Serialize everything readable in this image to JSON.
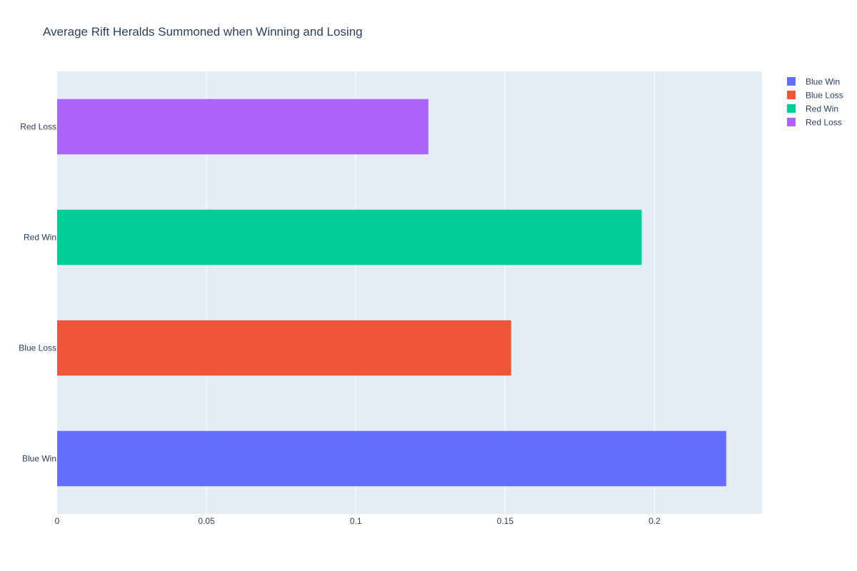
{
  "chart_data": {
    "type": "bar",
    "orientation": "horizontal",
    "title": "Average Rift Heralds Summoned when Winning and Losing",
    "xlabel": "",
    "ylabel": "",
    "categories": [
      "Blue Win",
      "Blue Loss",
      "Red Win",
      "Red Loss"
    ],
    "values": [
      0.224,
      0.152,
      0.1957,
      0.1243
    ],
    "xlim": [
      0,
      0.236
    ],
    "x_ticks": [
      0,
      0.05,
      0.1,
      0.15,
      0.2
    ],
    "x_tick_labels": [
      "0",
      "0.05",
      "0.1",
      "0.15",
      "0.2"
    ],
    "grid": true,
    "legend_position": "top-right",
    "series": [
      {
        "name": "Blue Win",
        "color": "#636efa",
        "category": "Blue Win",
        "value": 0.224
      },
      {
        "name": "Blue Loss",
        "color": "#ef553b",
        "category": "Blue Loss",
        "value": 0.152
      },
      {
        "name": "Red Win",
        "color": "#00cc96",
        "category": "Red Win",
        "value": 0.1957
      },
      {
        "name": "Red Loss",
        "color": "#ab63fa",
        "category": "Red Loss",
        "value": 0.1243
      }
    ],
    "colors": {
      "plot_background": "#e5ecf6",
      "gridline": "#ffffff",
      "text": "#2a3f5f"
    }
  }
}
